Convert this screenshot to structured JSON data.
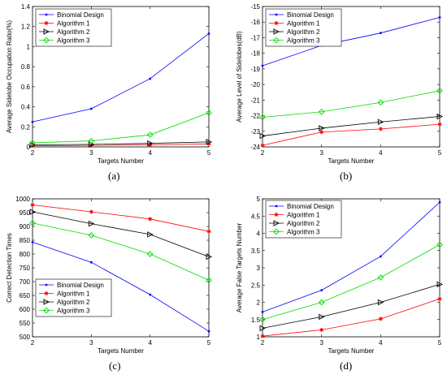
{
  "chart_data": [
    {
      "type": "line",
      "caption": "(a)",
      "xlabel": "Targets Number",
      "ylabel": "Average Sidelobe Occupation Ratio(%)",
      "x": [
        2,
        3,
        4,
        5
      ],
      "xticks": [
        "2",
        "3",
        "4",
        "5"
      ],
      "xlim": [
        2,
        5
      ],
      "ylim": [
        0,
        1.4
      ],
      "yticks": [
        "0",
        "0.2",
        "0.4",
        "0.6",
        "0.8",
        "1",
        "1.2",
        "1.4"
      ],
      "ytick_values": [
        0,
        0.2,
        0.4,
        0.6,
        0.8,
        1,
        1.2,
        1.4
      ],
      "legend_position": "top-left",
      "series": [
        {
          "name": "Binomial Design",
          "color": "#0000ff",
          "marker": "dot",
          "values": [
            0.25,
            0.38,
            0.68,
            1.13
          ]
        },
        {
          "name": "Algorithm 1",
          "color": "#ff0000",
          "marker": "star",
          "values": [
            0.01,
            0.015,
            0.02,
            0.03
          ]
        },
        {
          "name": "Algorithm 2",
          "color": "#000000",
          "marker": "triangle-right",
          "values": [
            0.02,
            0.025,
            0.035,
            0.05
          ]
        },
        {
          "name": "Algorithm 3",
          "color": "#00dd00",
          "marker": "diamond",
          "values": [
            0.04,
            0.06,
            0.12,
            0.34
          ]
        }
      ]
    },
    {
      "type": "line",
      "caption": "(b)",
      "xlabel": "Targets Number",
      "ylabel": "Average Level of Sidelobes(dB)",
      "x": [
        2,
        3,
        4,
        5
      ],
      "xticks": [
        "2",
        "3",
        "4",
        "5"
      ],
      "xlim": [
        2,
        5
      ],
      "ylim": [
        -24,
        -15
      ],
      "yticks": [
        "-15",
        "-16",
        "-17",
        "-18",
        "-19",
        "-20",
        "-21",
        "-22",
        "-23",
        "-24"
      ],
      "ytick_values": [
        -15,
        -16,
        -17,
        -18,
        -19,
        -20,
        -21,
        -22,
        -23,
        -24
      ],
      "legend_position": "top-left",
      "series": [
        {
          "name": "Binomial Design",
          "color": "#0000ff",
          "marker": "dot",
          "values": [
            -18.8,
            -17.5,
            -16.7,
            -15.7
          ]
        },
        {
          "name": "Algorithm 1",
          "color": "#ff0000",
          "marker": "star",
          "values": [
            -23.9,
            -23.05,
            -22.85,
            -22.55
          ]
        },
        {
          "name": "Algorithm 2",
          "color": "#000000",
          "marker": "triangle-right",
          "values": [
            -23.3,
            -22.8,
            -22.4,
            -22.05
          ]
        },
        {
          "name": "Algorithm 3",
          "color": "#00dd00",
          "marker": "diamond",
          "values": [
            -22.1,
            -21.75,
            -21.15,
            -20.4
          ]
        }
      ]
    },
    {
      "type": "line",
      "caption": "(c)",
      "xlabel": "Targets Number",
      "ylabel": "Correct Detection Times",
      "x": [
        2,
        3,
        4,
        5
      ],
      "xticks": [
        "2",
        "3",
        "4",
        "5"
      ],
      "xlim": [
        2,
        5
      ],
      "ylim": [
        500,
        1000
      ],
      "yticks": [
        "500",
        "550",
        "600",
        "650",
        "700",
        "750",
        "800",
        "850",
        "900",
        "950",
        "1000"
      ],
      "ytick_values": [
        500,
        550,
        600,
        650,
        700,
        750,
        800,
        850,
        900,
        950,
        1000
      ],
      "legend_position": "bottom-left",
      "series": [
        {
          "name": "Binomial Design",
          "color": "#0000ff",
          "marker": "dot",
          "values": [
            843,
            770,
            653,
            520
          ]
        },
        {
          "name": "Algorithm 1",
          "color": "#ff0000",
          "marker": "star",
          "values": [
            978,
            953,
            927,
            882
          ]
        },
        {
          "name": "Algorithm 2",
          "color": "#000000",
          "marker": "triangle-right",
          "values": [
            953,
            910,
            871,
            790
          ]
        },
        {
          "name": "Algorithm 3",
          "color": "#00dd00",
          "marker": "diamond",
          "values": [
            912,
            868,
            800,
            705
          ]
        }
      ]
    },
    {
      "type": "line",
      "caption": "(d)",
      "xlabel": "Targets Number",
      "ylabel": "Average False Targets Number",
      "x": [
        2,
        3,
        4,
        5
      ],
      "xticks": [
        "2",
        "3",
        "4",
        "5"
      ],
      "xlim": [
        2,
        5
      ],
      "ylim": [
        1,
        5
      ],
      "yticks": [
        "1",
        "1.5",
        "2",
        "2.5",
        "3",
        "3.5",
        "4",
        "4.5",
        "5"
      ],
      "ytick_values": [
        1,
        1.5,
        2,
        2.5,
        3,
        3.5,
        4,
        4.5,
        5
      ],
      "legend_position": "top-left",
      "series": [
        {
          "name": "Binomial Design",
          "color": "#0000ff",
          "marker": "dot",
          "values": [
            1.72,
            2.35,
            3.33,
            4.9
          ]
        },
        {
          "name": "Algorithm 1",
          "color": "#ff0000",
          "marker": "star",
          "values": [
            1.02,
            1.2,
            1.52,
            2.1
          ]
        },
        {
          "name": "Algorithm 2",
          "color": "#000000",
          "marker": "triangle-right",
          "values": [
            1.25,
            1.58,
            2.0,
            2.52
          ]
        },
        {
          "name": "Algorithm 3",
          "color": "#00dd00",
          "marker": "diamond",
          "values": [
            1.5,
            2.0,
            2.72,
            3.67
          ]
        }
      ]
    }
  ]
}
